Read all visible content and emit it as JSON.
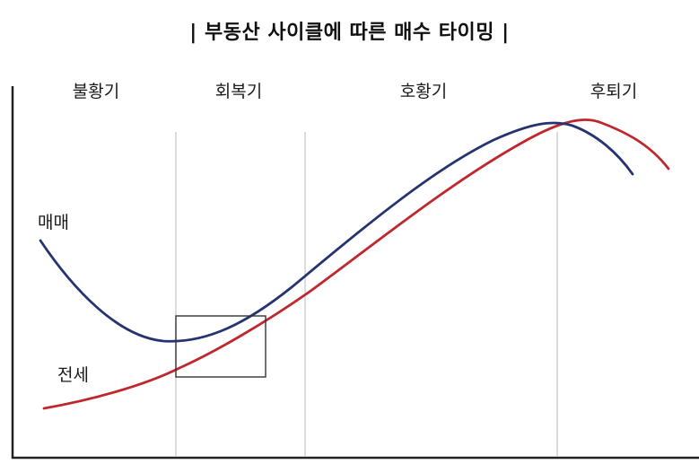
{
  "title": "| 부동산 사이클에 따른 매수 타이밍 |",
  "phases": [
    "불황기",
    "회복기",
    "호황기",
    "후퇴기"
  ],
  "curves": {
    "sale": {
      "label": "매매",
      "color": "#253470"
    },
    "jeonse": {
      "label": "전세",
      "color": "#c0272d"
    }
  },
  "colors": {
    "axis": "#222222",
    "divider": "#c4c4c4",
    "highlight_box": "#333333"
  }
}
